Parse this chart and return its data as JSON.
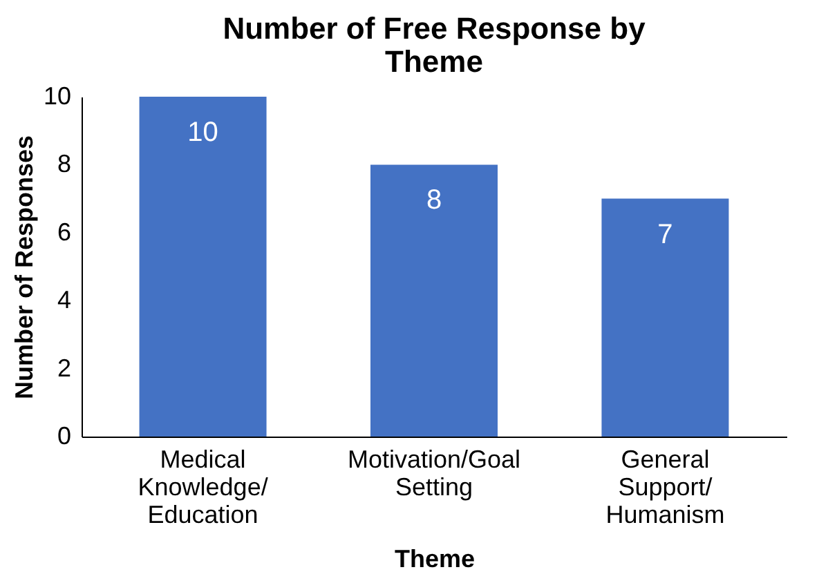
{
  "chart_data": {
    "type": "bar",
    "title": "Number of Free Response by Theme",
    "xlabel": "Theme",
    "ylabel": "Number of Responses",
    "categories": [
      "Medical Knowledge/ Education",
      "Motivation/Goal Setting",
      "General Support/ Humanism"
    ],
    "values": [
      10,
      8,
      7
    ],
    "color": "#4472c4",
    "ylim": [
      0,
      10
    ],
    "yticks": [
      0,
      2,
      4,
      6,
      8,
      10
    ],
    "grid": false,
    "data_labels": true
  }
}
